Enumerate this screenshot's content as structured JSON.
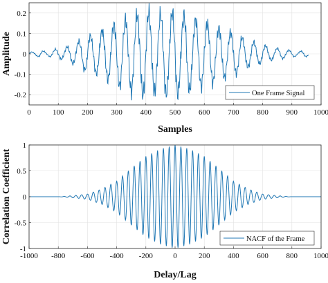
{
  "chart_data": [
    {
      "type": "line",
      "xlabel": "Samples",
      "ylabel": "Amplitude",
      "xlim": [
        0,
        1000
      ],
      "ylim": [
        -0.25,
        0.25
      ],
      "xticks": [
        "0",
        "100",
        "200",
        "300",
        "400",
        "500",
        "600",
        "700",
        "800",
        "900",
        "1000"
      ],
      "yticks": [
        "-0.2",
        "-0.1",
        "0",
        "0.1",
        "0.2"
      ],
      "xtick_values": [
        0,
        100,
        200,
        300,
        400,
        500,
        600,
        700,
        800,
        900,
        1000
      ],
      "ytick_values": [
        -0.2,
        -0.1,
        0,
        0.1,
        0.2
      ],
      "grid": true,
      "legend_position": "bottom-right",
      "color": "#1f77b4",
      "series": [
        {
          "name": "One Frame Signal",
          "x": [
            0,
            20,
            40,
            60,
            80,
            100,
            120,
            140,
            160,
            180,
            200,
            220,
            240,
            260,
            280,
            300,
            320,
            340,
            360,
            380,
            400,
            420,
            440,
            460,
            480,
            500,
            520,
            540,
            560,
            580,
            600,
            620,
            640,
            660,
            680,
            700,
            720,
            740,
            760,
            780,
            800,
            820,
            840,
            860,
            880,
            900,
            920,
            940,
            958
          ],
          "y": [
            0.0,
            -0.01,
            0.02,
            0.01,
            -0.02,
            0.03,
            -0.03,
            0.05,
            -0.06,
            0.08,
            -0.1,
            0.1,
            -0.12,
            0.14,
            -0.15,
            0.18,
            -0.18,
            0.2,
            -0.22,
            0.22,
            -0.24,
            0.23,
            -0.2,
            0.24,
            -0.21,
            0.25,
            -0.2,
            0.23,
            -0.18,
            0.2,
            -0.16,
            0.18,
            -0.14,
            0.15,
            -0.12,
            0.12,
            -0.1,
            0.08,
            -0.07,
            0.06,
            -0.05,
            0.04,
            -0.03,
            0.03,
            -0.02,
            0.02,
            -0.01,
            0.02,
            0.01
          ]
        }
      ]
    },
    {
      "type": "line",
      "xlabel": "Delay/Lag",
      "ylabel": "Correlation Coefficient",
      "xlim": [
        -1000,
        1000
      ],
      "ylim": [
        -1,
        1
      ],
      "xticks": [
        "-1000",
        "-800",
        "-600",
        "-400",
        "-200",
        "0",
        "200",
        "400",
        "600",
        "800",
        "1000"
      ],
      "yticks": [
        "-1",
        "-0.5",
        "0",
        "0.5",
        "1"
      ],
      "xtick_values": [
        -1000,
        -800,
        -600,
        -400,
        -200,
        0,
        200,
        400,
        600,
        800,
        1000
      ],
      "ytick_values": [
        -1,
        -0.5,
        0,
        0.5,
        1
      ],
      "grid": true,
      "legend_position": "bottom-right",
      "color": "#1f77b4",
      "series": [
        {
          "name": "NACF of the Frame",
          "x": [
            -1000,
            -800,
            -700,
            -600,
            -500,
            -400,
            -300,
            -200,
            -100,
            0,
            100,
            200,
            300,
            400,
            500,
            600,
            700,
            800,
            1000
          ],
          "y": [
            0,
            0,
            0.02,
            0.05,
            0.15,
            0.3,
            0.55,
            0.78,
            0.92,
            1.0,
            0.92,
            0.78,
            0.55,
            0.3,
            0.15,
            0.05,
            0.02,
            0,
            0
          ]
        }
      ]
    }
  ]
}
